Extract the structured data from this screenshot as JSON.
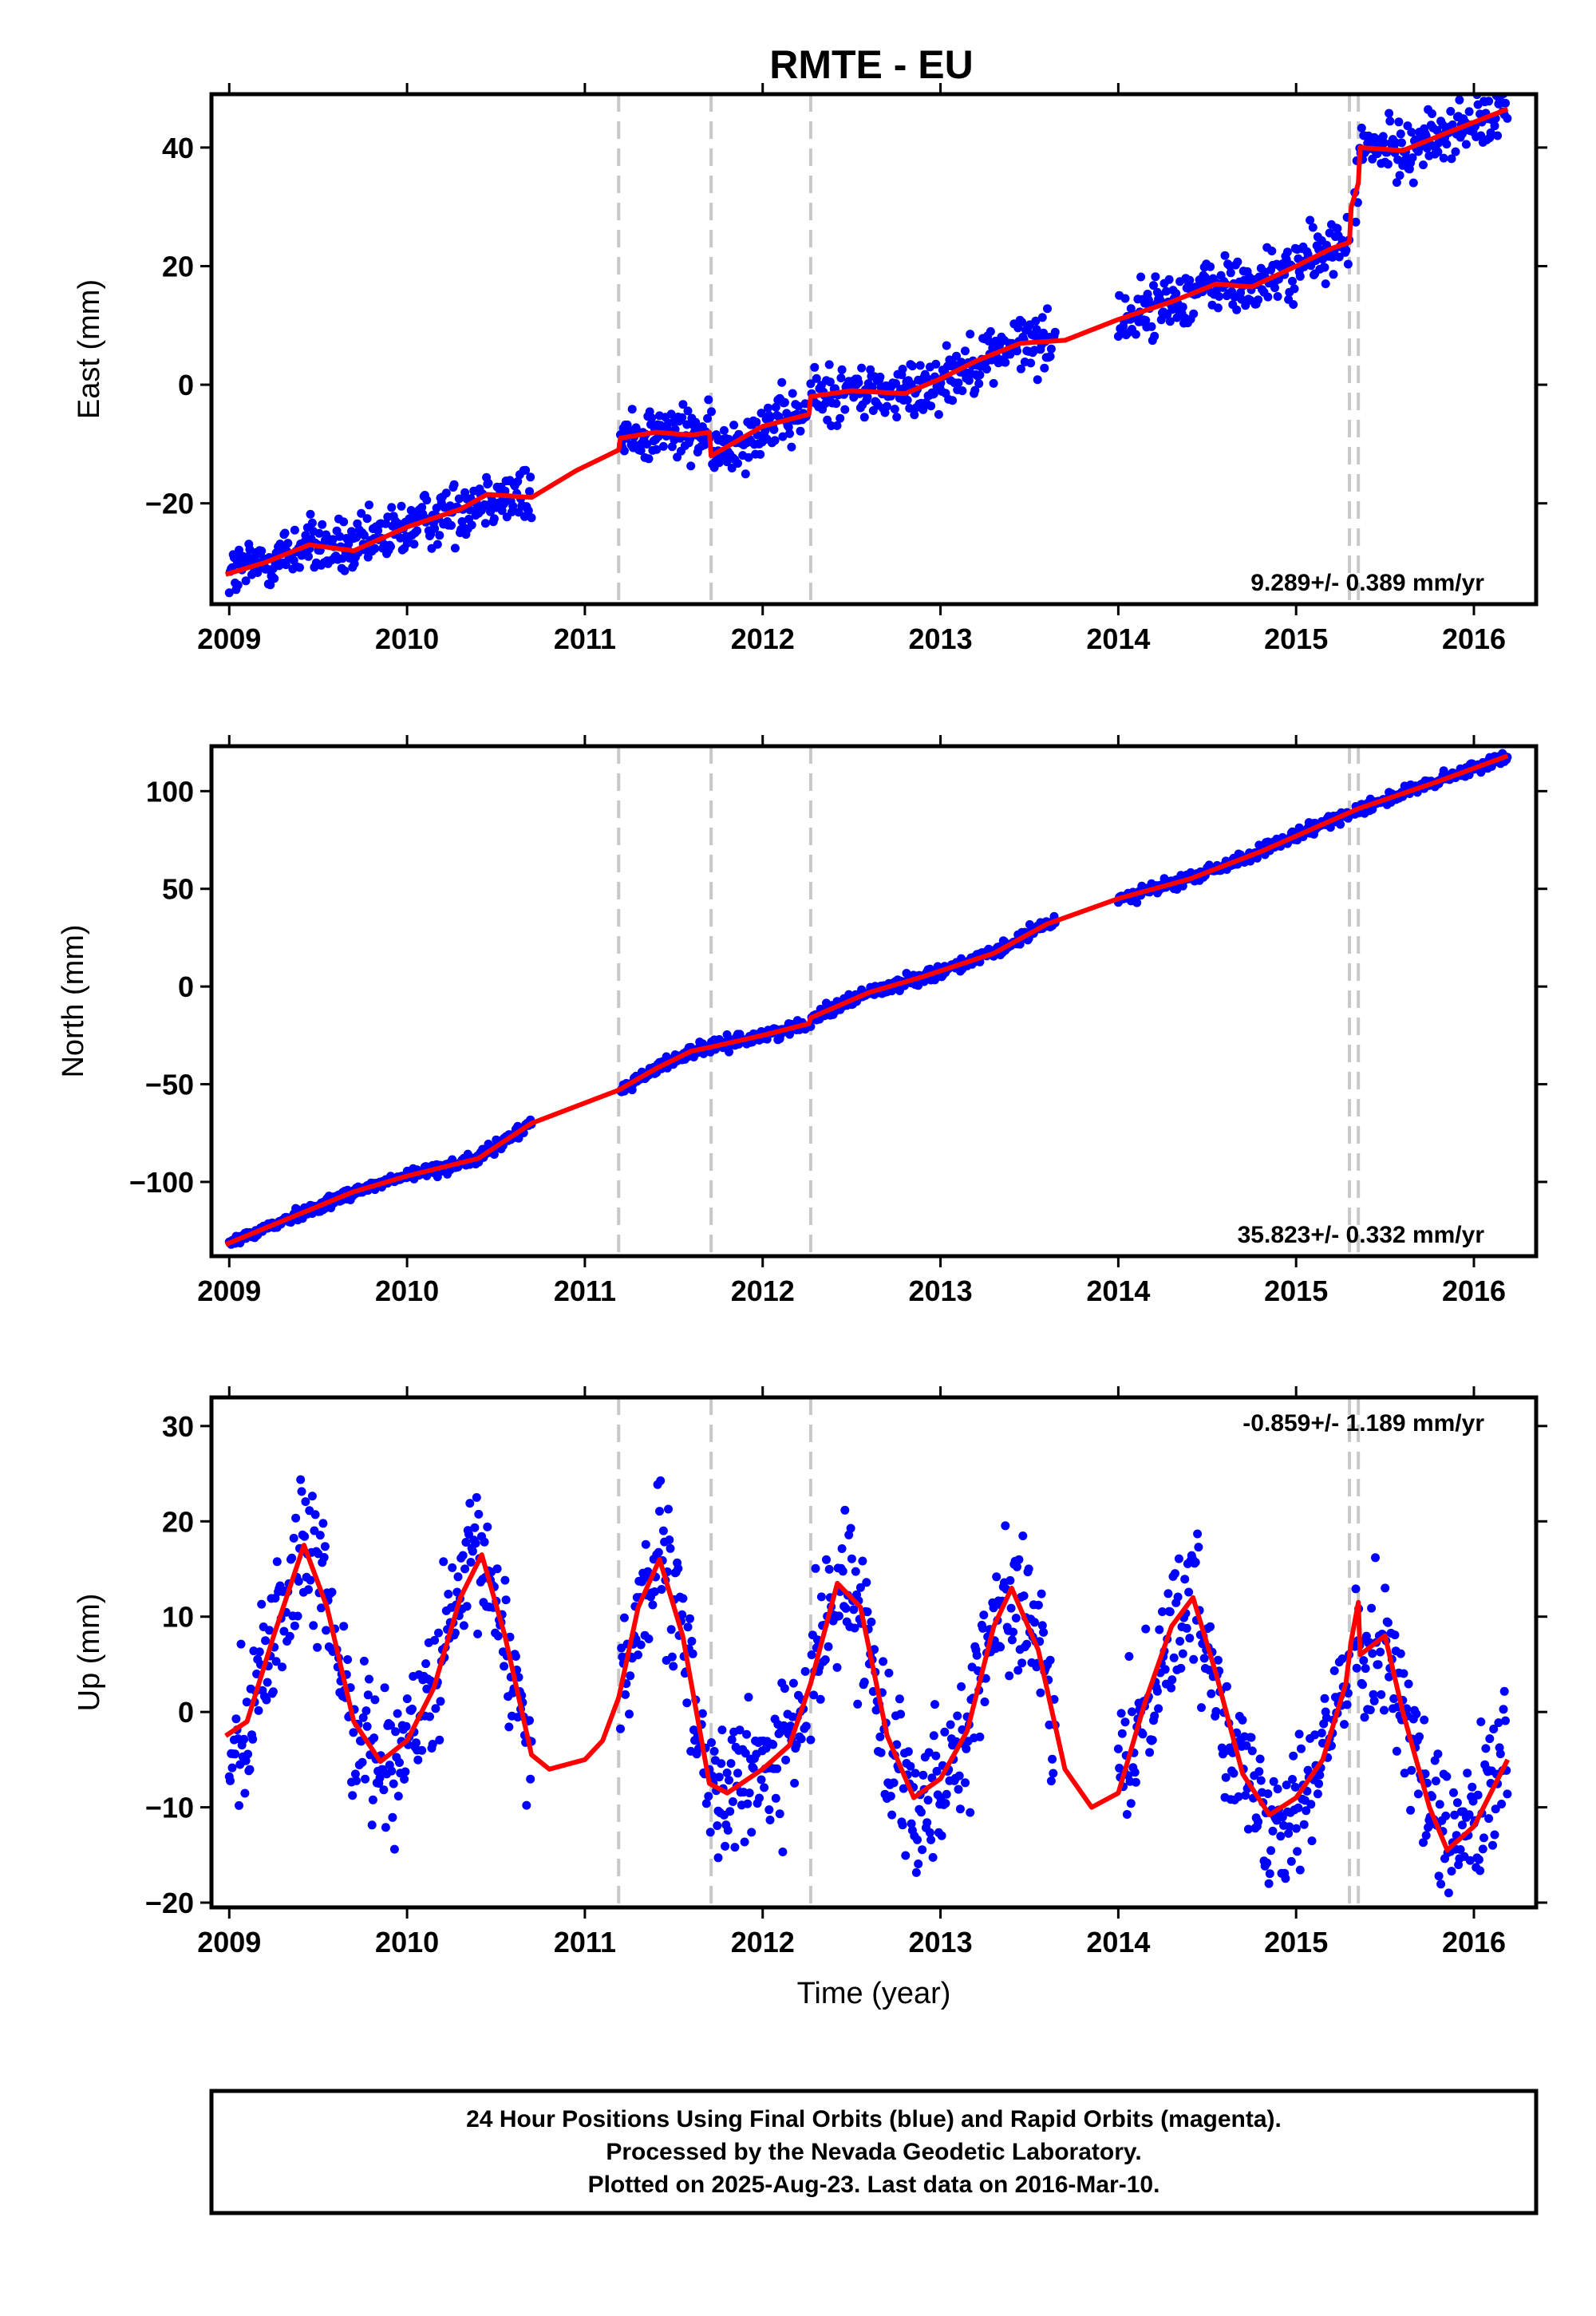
{
  "title": "RMTE - EU",
  "footer": {
    "line1": "24 Hour Positions Using Final Orbits (blue) and Rapid Orbits (magenta).",
    "line2": "Processed by the Nevada Geodetic Laboratory.",
    "line3": "Plotted on 2025-Aug-23. Last data on 2016-Mar-10."
  },
  "colors": {
    "points": "#0000ff",
    "model": "#ff0000",
    "breaks": "#c8c8c8",
    "frame": "#000000"
  },
  "chart_data": [
    {
      "type": "scatter",
      "component": "east",
      "ylabel": "East (mm)",
      "xlabel": "",
      "rate_label": "9.289+/- 0.389 mm/yr",
      "xlim": [
        2008.9,
        2016.35
      ],
      "ylim": [
        -37,
        49
      ],
      "yticks": [
        -20,
        0,
        20,
        40
      ],
      "xticks": [
        2009,
        2010,
        2011,
        2012,
        2013,
        2014,
        2015,
        2016
      ],
      "breaks": [
        2011.19,
        2011.71,
        2012.27,
        2015.3,
        2015.35
      ],
      "data_segments": [
        [
          2009.0,
          2010.7
        ],
        [
          2011.2,
          2011.75
        ],
        [
          2011.75,
          2012.25
        ],
        [
          2012.27,
          2013.65
        ],
        [
          2014.0,
          2015.3
        ],
        [
          2015.33,
          2016.19
        ]
      ],
      "model": {
        "x": [
          2008.98,
          2009.2,
          2009.45,
          2009.7,
          2010.0,
          2010.3,
          2010.45,
          2010.7,
          2010.95,
          2011.19,
          2011.2,
          2011.4,
          2011.6,
          2011.7,
          2011.71,
          2012.0,
          2012.26,
          2012.27,
          2012.5,
          2012.8,
          2013.0,
          2013.2,
          2013.45,
          2013.7,
          2014.0,
          2014.3,
          2014.55,
          2014.75,
          2015.0,
          2015.2,
          2015.3,
          2015.31,
          2015.35,
          2015.36,
          2015.6,
          2015.85,
          2016.19
        ],
        "y": [
          -32.0,
          -30.0,
          -27.0,
          -28.0,
          -24.0,
          -21.0,
          -18.5,
          -19.0,
          -14.5,
          -11.0,
          -9.0,
          -8.0,
          -8.5,
          -8.0,
          -12.0,
          -7.0,
          -5.0,
          -2.0,
          -1.0,
          -1.5,
          1.0,
          4.0,
          7.0,
          7.5,
          11.0,
          14.0,
          17.0,
          16.5,
          20.0,
          23.0,
          24.0,
          30.0,
          34.0,
          40.0,
          39.5,
          42.5,
          46.5
        ]
      }
    },
    {
      "type": "scatter",
      "component": "north",
      "ylabel": "North (mm)",
      "xlabel": "",
      "rate_label": "35.823+/- 0.332 mm/yr",
      "xlim": [
        2008.9,
        2016.35
      ],
      "ylim": [
        -138,
        123
      ],
      "yticks": [
        -100,
        -50,
        0,
        50,
        100
      ],
      "xticks": [
        2009,
        2010,
        2011,
        2012,
        2013,
        2014,
        2015,
        2016
      ],
      "breaks": [
        2011.19,
        2011.71,
        2012.27,
        2015.3,
        2015.35
      ],
      "data_segments": [
        [
          2009.0,
          2010.7
        ],
        [
          2011.2,
          2011.75
        ],
        [
          2011.75,
          2012.25
        ],
        [
          2012.27,
          2013.65
        ],
        [
          2014.0,
          2015.3
        ],
        [
          2015.33,
          2016.19
        ]
      ],
      "model": {
        "x": [
          2008.98,
          2009.3,
          2009.7,
          2010.0,
          2010.4,
          2010.7,
          2011.19,
          2011.4,
          2011.6,
          2011.71,
          2012.0,
          2012.26,
          2012.27,
          2012.6,
          2012.9,
          2013.3,
          2013.6,
          2014.0,
          2014.4,
          2014.8,
          2015.3,
          2015.35,
          2015.8,
          2016.19
        ],
        "y": [
          -132.0,
          -120.0,
          -105.0,
          -97.0,
          -88.0,
          -70.0,
          -53.0,
          -42.0,
          -33.0,
          -31.0,
          -25.0,
          -19.0,
          -16.0,
          -3.0,
          5.0,
          17.0,
          32.0,
          45.0,
          55.0,
          69.0,
          89.0,
          91.0,
          105.0,
          118.0
        ]
      }
    },
    {
      "type": "scatter",
      "component": "up",
      "ylabel": "Up (mm)",
      "xlabel": "Time (year)",
      "rate_label": "-0.859+/- 1.189 mm/yr",
      "xlim": [
        2008.9,
        2016.35
      ],
      "ylim": [
        -20.5,
        33
      ],
      "yticks": [
        -20,
        -10,
        0,
        10,
        20,
        30
      ],
      "xticks": [
        2009,
        2010,
        2011,
        2012,
        2013,
        2014,
        2015,
        2016
      ],
      "breaks": [
        2011.19,
        2011.71,
        2012.27,
        2015.3,
        2015.35
      ],
      "data_segments": [
        [
          2009.0,
          2010.7
        ],
        [
          2011.2,
          2011.75
        ],
        [
          2011.75,
          2012.25
        ],
        [
          2012.27,
          2013.65
        ],
        [
          2014.0,
          2015.3
        ],
        [
          2015.33,
          2016.19
        ]
      ],
      "model": {
        "x": [
          2008.98,
          2009.1,
          2009.25,
          2009.42,
          2009.55,
          2009.7,
          2009.85,
          2010.0,
          2010.15,
          2010.3,
          2010.42,
          2010.55,
          2010.7,
          2010.8,
          2011.0,
          2011.1,
          2011.19,
          2011.3,
          2011.42,
          2011.55,
          2011.7,
          2011.8,
          2012.0,
          2012.15,
          2012.27,
          2012.42,
          2012.55,
          2012.7,
          2012.85,
          2013.0,
          2013.15,
          2013.3,
          2013.4,
          2013.55,
          2013.7,
          2013.85,
          2014.0,
          2014.15,
          2014.3,
          2014.42,
          2014.55,
          2014.7,
          2014.85,
          2015.0,
          2015.15,
          2015.28,
          2015.31,
          2015.35,
          2015.36,
          2015.5,
          2015.6,
          2015.75,
          2015.85,
          2016.0,
          2016.19
        ],
        "y": [
          -2.5,
          -1.0,
          8.0,
          17.5,
          11.0,
          -1.0,
          -5.2,
          -3.0,
          2.5,
          12.0,
          16.5,
          8.0,
          -4.5,
          -6.0,
          -5.0,
          -3.0,
          1.5,
          11.0,
          16.0,
          8.0,
          -7.5,
          -8.5,
          -6.0,
          -3.5,
          3.0,
          13.5,
          11.0,
          -2.5,
          -9.0,
          -7.0,
          -2.0,
          9.0,
          13.0,
          6.5,
          -6.0,
          -10.0,
          -8.5,
          1.0,
          9.0,
          12.0,
          4.0,
          -6.5,
          -10.8,
          -9.0,
          -5.0,
          3.0,
          7.5,
          11.5,
          6.0,
          8.0,
          0.0,
          -10.0,
          -14.5,
          -12.0,
          -5.0
        ]
      }
    }
  ]
}
